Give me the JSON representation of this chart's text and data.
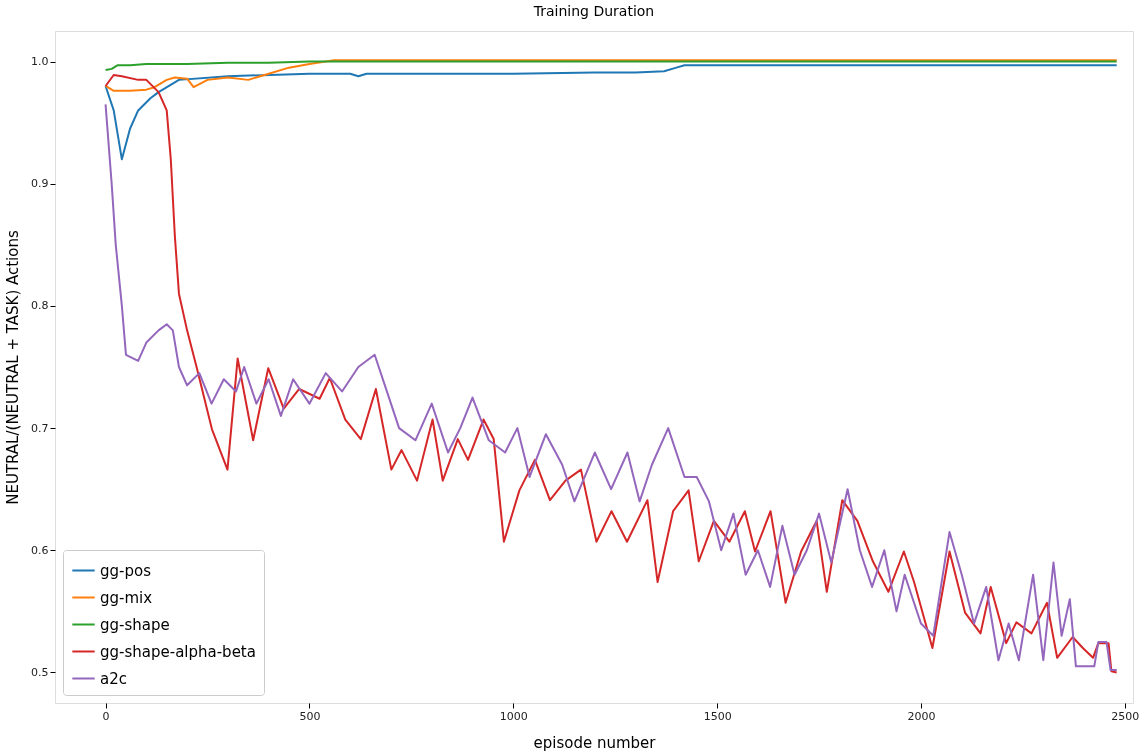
{
  "chart_data": {
    "type": "line",
    "title": "Training Duration",
    "xlabel": "episode number",
    "ylabel": "NEUTRAL/(NEUTRAL + TASK) Actions",
    "xlim": [
      -124,
      2520
    ],
    "xticks": [
      0,
      500,
      1000,
      1500,
      2000,
      2500
    ],
    "ylim": [
      0.475,
      1.025
    ],
    "yticks": [
      0.5,
      0.6,
      0.7,
      0.8,
      0.9,
      {
        "value": 1,
        "label": "1.0"
      }
    ],
    "grid": false,
    "legend": "bottom left",
    "line_style": "solid",
    "series": [
      {
        "name": "gg-pos",
        "color": "#1f77b4",
        "x": [
          0,
          20,
          40,
          60,
          80,
          110,
          130,
          180,
          300,
          500,
          600,
          620,
          640,
          700,
          1000,
          1200,
          1300,
          1370,
          1400,
          1420,
          1600,
          1800,
          2000,
          2200,
          2480
        ],
        "values": [
          0.98,
          0.96,
          0.92,
          0.945,
          0.96,
          0.97,
          0.975,
          0.985,
          0.988,
          0.99,
          0.99,
          0.988,
          0.99,
          0.99,
          0.99,
          0.991,
          0.991,
          0.992,
          0.995,
          0.997,
          0.997,
          0.997,
          0.997,
          0.997,
          0.997
        ]
      },
      {
        "name": "gg-mix",
        "color": "#ff7f0e",
        "x": [
          0,
          20,
          60,
          100,
          120,
          150,
          170,
          200,
          216,
          250,
          300,
          350,
          400,
          450,
          500,
          560,
          800,
          1200,
          1700,
          2480
        ],
        "values": [
          0.98,
          0.976,
          0.976,
          0.977,
          0.979,
          0.985,
          0.987,
          0.986,
          0.979,
          0.985,
          0.987,
          0.985,
          0.99,
          0.995,
          0.998,
          1.001,
          1.001,
          1.001,
          1.001,
          1.001
        ]
      },
      {
        "name": "gg-shape",
        "color": "#2ca02c",
        "x": [
          0,
          15,
          30,
          60,
          100,
          200,
          300,
          400,
          500,
          700,
          1000,
          1500,
          2000,
          2480
        ],
        "values": [
          0.993,
          0.994,
          0.997,
          0.997,
          0.998,
          0.998,
          0.999,
          0.999,
          1.0,
          1.0,
          1.0,
          1.0,
          1.0,
          1.0
        ]
      },
      {
        "name": "gg-shape-alpha-beta",
        "color": "#d62728",
        "x": [
          0,
          20,
          40,
          80,
          100,
          130,
          150,
          160,
          170,
          180,
          200,
          224,
          261,
          299,
          324,
          362,
          399,
          437,
          475,
          525,
          550,
          588,
          626,
          663,
          701,
          726,
          764,
          802,
          827,
          864,
          889,
          927,
          952,
          977,
          1015,
          1053,
          1090,
          1128,
          1166,
          1204,
          1241,
          1279,
          1329,
          1354,
          1392,
          1430,
          1455,
          1492,
          1530,
          1568,
          1593,
          1631,
          1668,
          1706,
          1744,
          1769,
          1807,
          1844,
          1882,
          1920,
          1958,
          1983,
          2028,
          2070,
          2108,
          2146,
          2171,
          2209,
          2234,
          2271,
          2309,
          2334,
          2372,
          2397,
          2422,
          2435,
          2460,
          2467,
          2480
        ],
        "values": [
          0.98,
          0.989,
          0.988,
          0.985,
          0.985,
          0.975,
          0.96,
          0.92,
          0.857,
          0.81,
          0.78,
          0.749,
          0.699,
          0.666,
          0.757,
          0.69,
          0.749,
          0.716,
          0.732,
          0.724,
          0.741,
          0.707,
          0.691,
          0.732,
          0.666,
          0.682,
          0.657,
          0.707,
          0.657,
          0.691,
          0.674,
          0.707,
          0.691,
          0.607,
          0.649,
          0.674,
          0.641,
          0.657,
          0.666,
          0.607,
          0.632,
          0.607,
          0.641,
          0.574,
          0.632,
          0.649,
          0.591,
          0.624,
          0.607,
          0.632,
          0.599,
          0.632,
          0.557,
          0.599,
          0.624,
          0.566,
          0.641,
          0.624,
          0.591,
          0.566,
          0.599,
          0.574,
          0.52,
          0.599,
          0.549,
          0.532,
          0.57,
          0.524,
          0.541,
          0.532,
          0.557,
          0.512,
          0.529,
          0.52,
          0.512,
          0.524,
          0.524,
          0.501,
          0.5
        ]
      },
      {
        "name": "a2c",
        "color": "#9467bd",
        "x": [
          0,
          15,
          25,
          40,
          50,
          80,
          100,
          130,
          150,
          165,
          180,
          200,
          230,
          260,
          290,
          320,
          340,
          370,
          400,
          430,
          460,
          500,
          540,
          580,
          620,
          660,
          690,
          720,
          760,
          800,
          840,
          870,
          900,
          940,
          980,
          1010,
          1040,
          1080,
          1120,
          1150,
          1200,
          1240,
          1280,
          1310,
          1340,
          1380,
          1420,
          1450,
          1480,
          1510,
          1540,
          1570,
          1600,
          1630,
          1660,
          1690,
          1720,
          1750,
          1780,
          1800,
          1820,
          1850,
          1880,
          1910,
          1940,
          1960,
          2000,
          2030,
          2070,
          2100,
          2130,
          2160,
          2190,
          2215,
          2240,
          2275,
          2300,
          2325,
          2345,
          2365,
          2380,
          2425,
          2435,
          2455,
          2465,
          2480
        ],
        "values": [
          0.965,
          0.9,
          0.85,
          0.8,
          0.76,
          0.755,
          0.77,
          0.78,
          0.785,
          0.78,
          0.75,
          0.735,
          0.745,
          0.72,
          0.74,
          0.73,
          0.75,
          0.72,
          0.74,
          0.71,
          0.74,
          0.72,
          0.745,
          0.73,
          0.75,
          0.76,
          0.73,
          0.7,
          0.69,
          0.72,
          0.68,
          0.7,
          0.725,
          0.69,
          0.68,
          0.7,
          0.66,
          0.695,
          0.67,
          0.64,
          0.68,
          0.65,
          0.68,
          0.64,
          0.67,
          0.7,
          0.66,
          0.66,
          0.64,
          0.6,
          0.63,
          0.58,
          0.6,
          0.57,
          0.62,
          0.58,
          0.6,
          0.63,
          0.59,
          0.62,
          0.65,
          0.6,
          0.57,
          0.6,
          0.55,
          0.58,
          0.54,
          0.53,
          0.615,
          0.58,
          0.54,
          0.57,
          0.51,
          0.54,
          0.51,
          0.58,
          0.51,
          0.59,
          0.53,
          0.56,
          0.505,
          0.505,
          0.525,
          0.525,
          0.502,
          0.502
        ]
      }
    ]
  }
}
